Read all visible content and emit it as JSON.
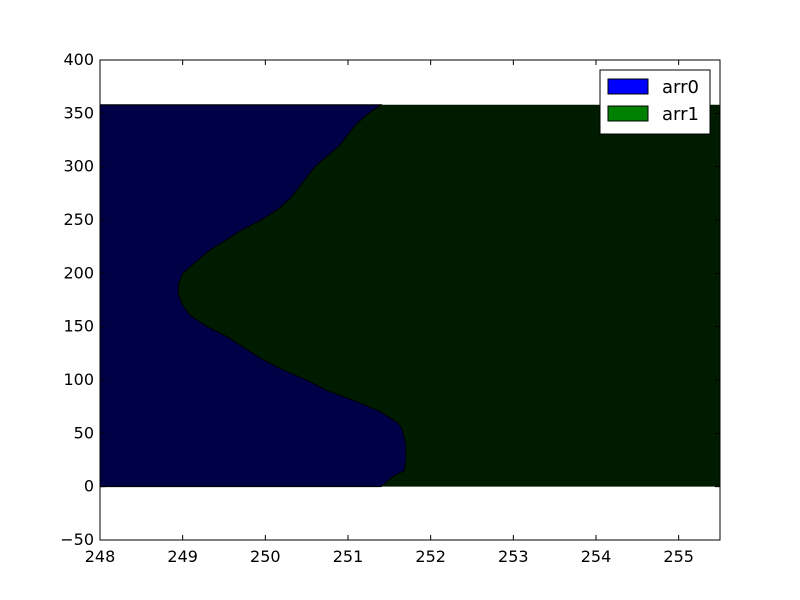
{
  "chart_data": {
    "type": "area",
    "orientation": "horizontal",
    "stacked": true,
    "xlim": [
      248,
      255.5
    ],
    "ylim": [
      -50,
      400
    ],
    "xticks": [
      248,
      249,
      250,
      251,
      252,
      253,
      254,
      255
    ],
    "yticks": [
      -50,
      0,
      50,
      100,
      150,
      200,
      250,
      300,
      350,
      400
    ],
    "grid": false,
    "legend_position": "top-right",
    "series": [
      {
        "name": "arr0",
        "color": "#0000ff",
        "profile": [
          [
            0,
            251.4
          ],
          [
            10,
            251.55
          ],
          [
            15,
            251.68
          ],
          [
            25,
            251.7
          ],
          [
            40,
            251.7
          ],
          [
            55,
            251.65
          ],
          [
            60,
            251.6
          ],
          [
            70,
            251.4
          ],
          [
            80,
            251.1
          ],
          [
            90,
            250.75
          ],
          [
            100,
            250.5
          ],
          [
            110,
            250.2
          ],
          [
            120,
            249.95
          ],
          [
            130,
            249.75
          ],
          [
            140,
            249.55
          ],
          [
            150,
            249.3
          ],
          [
            160,
            249.1
          ],
          [
            170,
            249.0
          ],
          [
            180,
            248.95
          ],
          [
            190,
            248.95
          ],
          [
            200,
            249.0
          ],
          [
            210,
            249.15
          ],
          [
            220,
            249.3
          ],
          [
            230,
            249.5
          ],
          [
            240,
            249.7
          ],
          [
            250,
            249.95
          ],
          [
            260,
            250.15
          ],
          [
            270,
            250.3
          ],
          [
            280,
            250.4
          ],
          [
            290,
            250.5
          ],
          [
            300,
            250.6
          ],
          [
            310,
            250.75
          ],
          [
            320,
            250.9
          ],
          [
            330,
            251.0
          ],
          [
            340,
            251.1
          ],
          [
            350,
            251.25
          ],
          [
            358,
            251.4
          ]
        ]
      },
      {
        "name": "arr1",
        "color": "#008000",
        "profile": [
          [
            0,
            255.5
          ],
          [
            358,
            255.5
          ]
        ]
      }
    ]
  }
}
